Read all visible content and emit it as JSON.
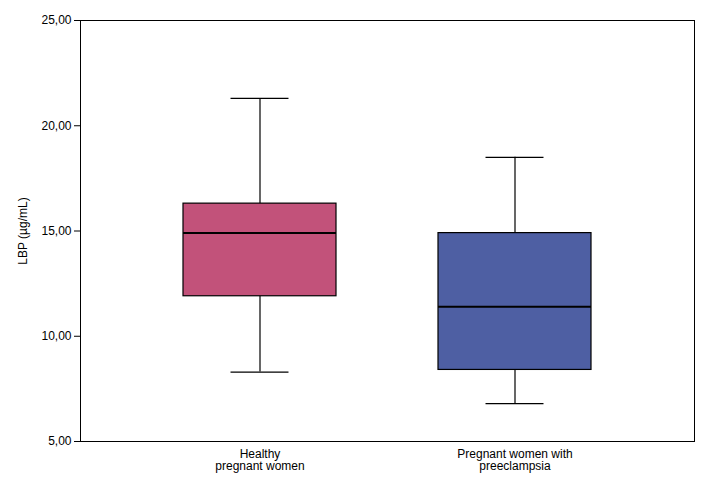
{
  "chart_data": {
    "type": "box",
    "categories": [
      "Healthy\npregnant women",
      "Pregnant women with\npreeclampsia"
    ],
    "whisker_low": [
      8.3,
      6.8
    ],
    "q1": [
      11.9,
      8.4
    ],
    "median": [
      14.9,
      11.4
    ],
    "q3": [
      16.3,
      14.9
    ],
    "whisker_high": [
      21.3,
      18.5
    ],
    "colors": [
      "#c2527a",
      "#4e5fa3"
    ],
    "ylabel": "LBP (µg/mL)",
    "ylim": [
      5.0,
      25.0
    ],
    "yticks": [
      {
        "value": 5.0,
        "label": "5,00"
      },
      {
        "value": 10.0,
        "label": "10,00"
      },
      {
        "value": 15.0,
        "label": "15,00"
      },
      {
        "value": 20.0,
        "label": "20,00"
      },
      {
        "value": 25.0,
        "label": "25,00"
      }
    ]
  }
}
